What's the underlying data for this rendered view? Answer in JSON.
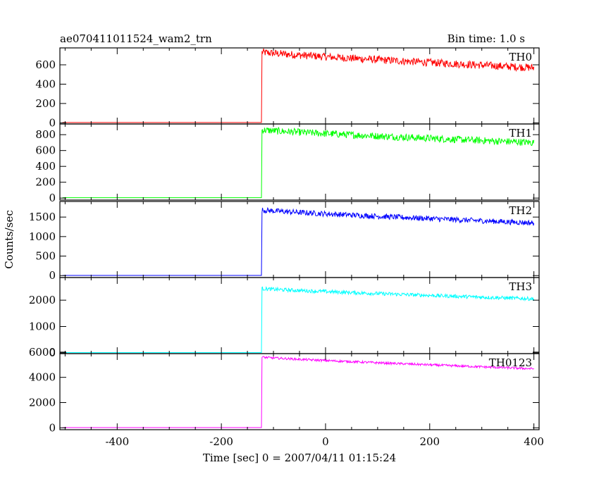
{
  "header": {
    "title": "ae070411011524_wam2_trn",
    "bin_time": "Bin time: 1.0 s"
  },
  "chart_data": {
    "type": "line",
    "xlabel": "Time [sec] 0 = 2007/04/11 01:15:24",
    "ylabel": "Counts/sec",
    "xlim": [
      -510,
      410
    ],
    "x_ticks": [
      -400,
      -200,
      0,
      200,
      400
    ],
    "trigger_time": -122,
    "end_time": 400,
    "grid": false,
    "panels": [
      {
        "name": "TH0",
        "color": "#ff0000",
        "ylim": [
          -12,
          775
        ],
        "y_ticks": [
          0,
          200,
          400,
          600
        ],
        "pre_level": 3,
        "peak_level": 730,
        "end_level": 570,
        "noise": 40
      },
      {
        "name": "TH1",
        "color": "#00ff00",
        "ylim": [
          -25,
          935
        ],
        "y_ticks": [
          0,
          200,
          400,
          600,
          800
        ],
        "pre_level": 5,
        "peak_level": 860,
        "end_level": 700,
        "noise": 45
      },
      {
        "name": "TH2",
        "color": "#0000ff",
        "ylim": [
          -50,
          1900
        ],
        "y_ticks": [
          0,
          500,
          1000,
          1500
        ],
        "pre_level": 5,
        "peak_level": 1680,
        "end_level": 1350,
        "noise": 70
      },
      {
        "name": "TH3",
        "color": "#00ffff",
        "ylim": [
          -30,
          2860
        ],
        "y_ticks": [
          0,
          1000,
          2000
        ],
        "pre_level": 10,
        "peak_level": 2440,
        "end_level": 2050,
        "noise": 70
      },
      {
        "name": "TH0123",
        "color": "#ff00ff",
        "ylim": [
          -150,
          5880
        ],
        "y_ticks": [
          0,
          2000,
          4000,
          6000
        ],
        "pre_level": 20,
        "peak_level": 5600,
        "end_level": 4680,
        "noise": 90
      }
    ]
  }
}
